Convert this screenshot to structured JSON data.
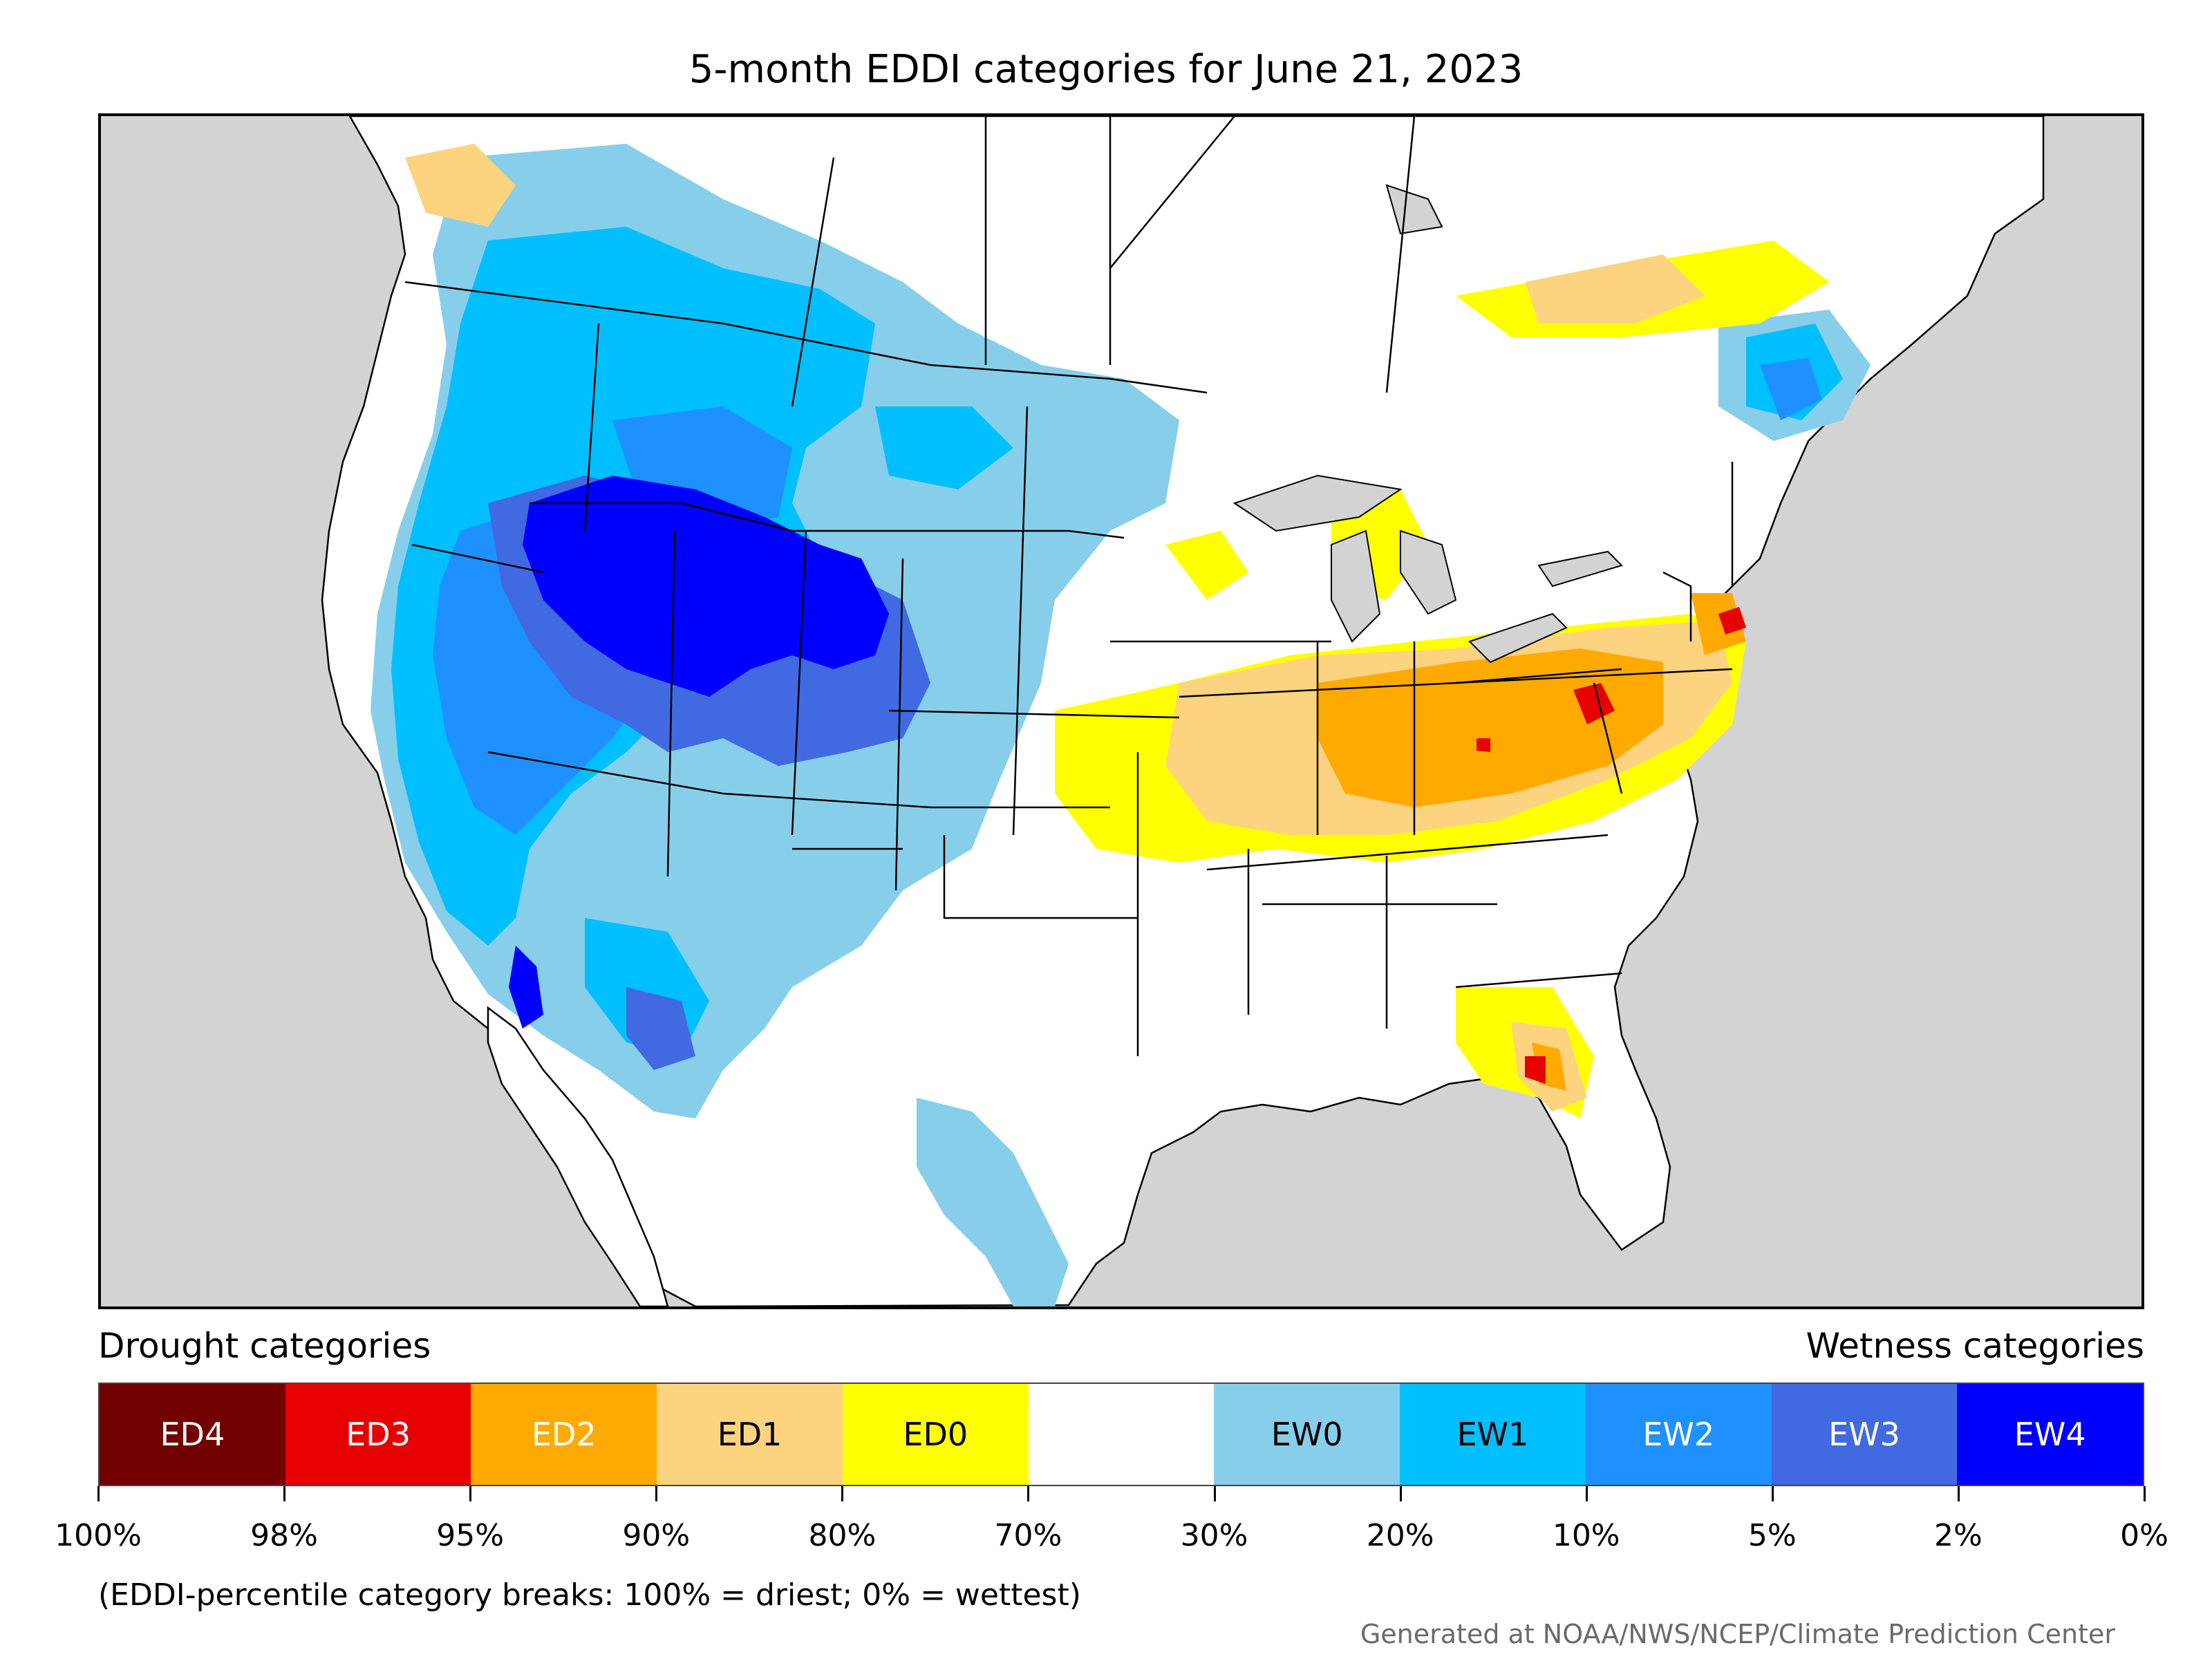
{
  "title": "5-month EDDI categories for June 21, 2023",
  "legend": {
    "drought_heading": "Drought categories",
    "wetness_heading": "Wetness categories",
    "categories": [
      {
        "label": "ED4",
        "color": "#730000",
        "text_color": "#ffffff"
      },
      {
        "label": "ED3",
        "color": "#e60000",
        "text_color": "#ffffff"
      },
      {
        "label": "ED2",
        "color": "#ffaa00",
        "text_color": "#ffffff"
      },
      {
        "label": "ED1",
        "color": "#fcd37f",
        "text_color": "#000000"
      },
      {
        "label": "ED0",
        "color": "#ffff00",
        "text_color": "#000000"
      },
      {
        "label": "",
        "color": "#ffffff",
        "text_color": "#000000"
      },
      {
        "label": "EW0",
        "color": "#87ceeb",
        "text_color": "#000000"
      },
      {
        "label": "EW1",
        "color": "#00bfff",
        "text_color": "#000000"
      },
      {
        "label": "EW2",
        "color": "#1e90ff",
        "text_color": "#ffffff"
      },
      {
        "label": "EW3",
        "color": "#4169e1",
        "text_color": "#ffffff"
      },
      {
        "label": "EW4",
        "color": "#0000ff",
        "text_color": "#ffffff"
      }
    ],
    "breaks": [
      "100%",
      "98%",
      "95%",
      "90%",
      "80%",
      "70%",
      "30%",
      "20%",
      "10%",
      "5%",
      "2%",
      "0%"
    ],
    "note": "(EDDI-percentile category breaks: 100% = driest; 0% = wettest)"
  },
  "credit": "Generated at NOAA/NWS/NCEP/Climate Prediction Center",
  "map": {
    "land_color": "#ffffff",
    "water_color": "#d3d3d3",
    "regions": [
      {
        "name": "Great Basin / Idaho / Wyoming core",
        "category": "EW4"
      },
      {
        "name": "Utah / Colorado plateau",
        "category": "EW3"
      },
      {
        "name": "California / Nevada / Arizona",
        "category": "EW1"
      },
      {
        "name": "Montana / Dakotas / Nebraska",
        "category": "EW0"
      },
      {
        "name": "South Texas",
        "category": "EW0"
      },
      {
        "name": "Quebec / New England",
        "category": "EW1"
      },
      {
        "name": "Midwest / Ohio Valley",
        "category": "ED1"
      },
      {
        "name": "Indiana / Ohio / Pennsylvania",
        "category": "ED2"
      },
      {
        "name": "Virginia / Kentucky hot spots",
        "category": "ED3"
      },
      {
        "name": "Missouri / Kansas / Iowa margins",
        "category": "ED0"
      },
      {
        "name": "Central Florida",
        "category": "ED2"
      },
      {
        "name": "Ontario / Quebec north",
        "category": "ED1"
      },
      {
        "name": "British Columbia interior",
        "category": "ED1"
      }
    ]
  }
}
